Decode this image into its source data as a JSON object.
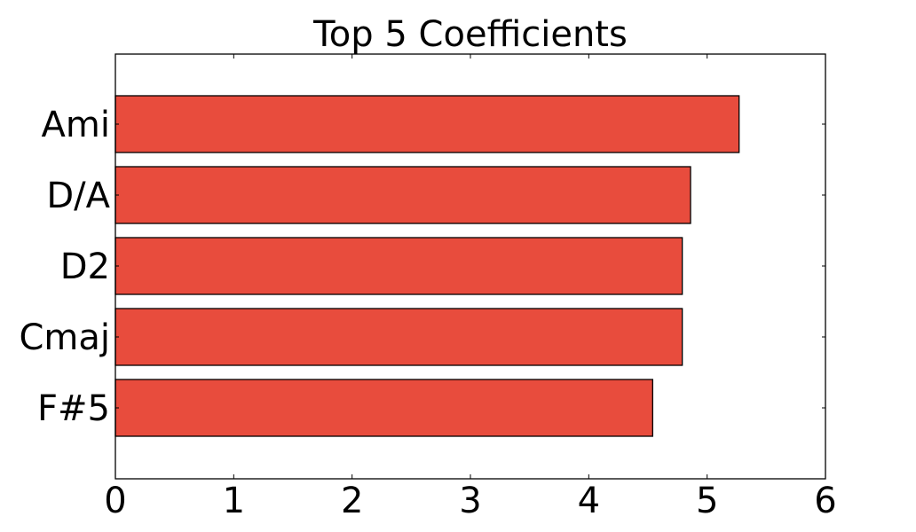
{
  "chart_data": {
    "type": "bar",
    "orientation": "horizontal",
    "title": "Top 5 Coefficients",
    "xlabel": "",
    "ylabel": "",
    "categories": [
      "Ami",
      "D/A",
      "D2",
      "Cmaj",
      "F#5"
    ],
    "values": [
      5.27,
      4.86,
      4.79,
      4.79,
      4.54
    ],
    "xlim": [
      0,
      6
    ],
    "x_ticks": [
      "0",
      "1",
      "2",
      "3",
      "4",
      "5",
      "6"
    ],
    "grid": false,
    "bar_color": "#e84c3d",
    "edge_color": "#000000"
  }
}
